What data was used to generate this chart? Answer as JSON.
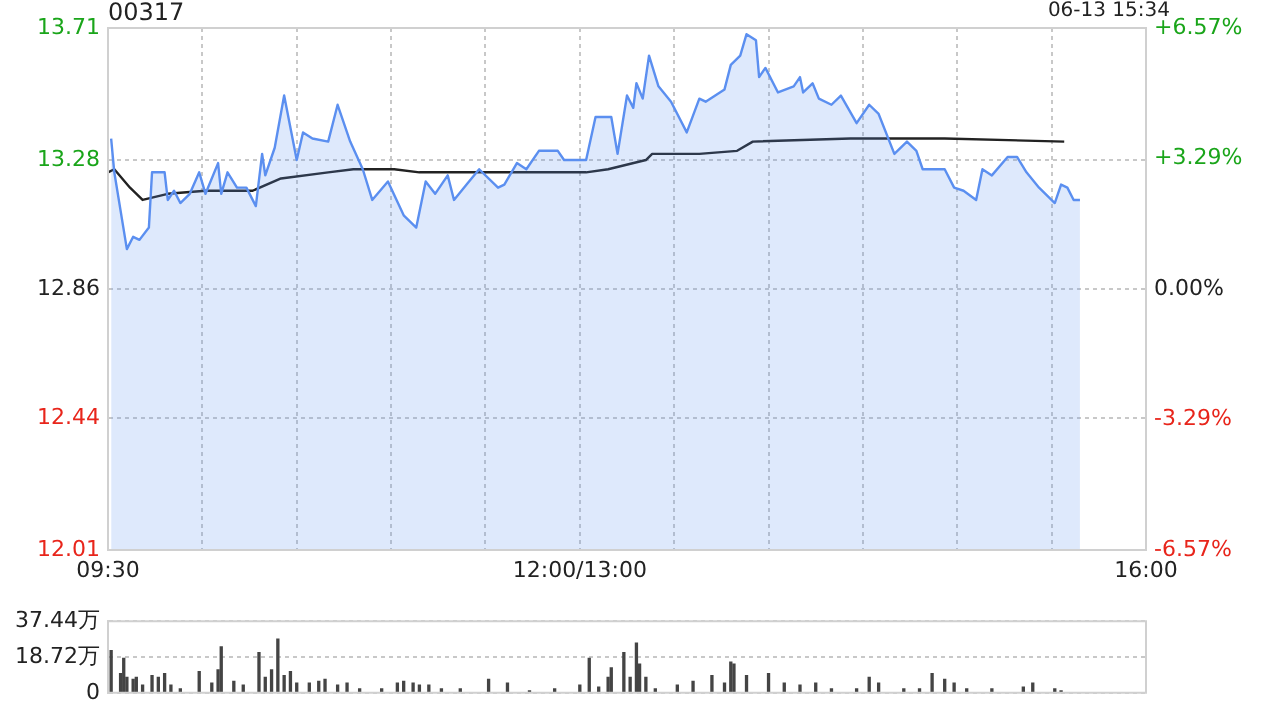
{
  "chart_data": [
    {
      "type": "line",
      "title": "00317",
      "annotations": [
        "06-13 15:34"
      ],
      "grid": true,
      "marker": "none",
      "categories": [
        "09:30",
        null,
        null,
        null,
        null,
        null,
        null,
        null,
        null,
        null,
        null,
        null,
        null,
        null,
        null,
        null,
        null,
        null,
        null,
        null,
        null,
        null,
        null,
        null,
        null,
        null,
        null,
        null,
        null,
        null,
        null,
        null,
        null,
        null,
        null,
        null,
        null,
        null,
        null,
        null,
        null,
        null,
        null,
        null,
        null,
        null,
        null,
        null,
        null,
        null,
        null,
        null,
        null,
        null,
        null,
        null,
        null,
        null,
        null,
        null,
        null,
        null,
        null,
        null,
        null,
        null,
        null,
        null,
        null,
        null,
        null,
        null,
        null,
        null,
        null,
        null,
        null,
        null,
        null,
        null,
        null,
        null,
        null,
        null,
        null,
        null,
        null,
        null,
        null,
        null,
        null,
        null,
        null,
        null,
        null,
        null,
        null,
        null,
        null,
        null,
        null,
        null,
        null,
        null,
        null,
        null,
        null,
        null,
        null,
        null,
        null,
        null,
        null,
        null,
        null,
        null,
        null,
        null,
        null,
        null,
        null,
        null,
        null,
        null,
        null,
        null,
        null,
        null,
        null,
        null,
        null,
        null,
        null,
        null,
        null,
        null,
        null,
        null,
        null,
        null,
        null,
        null,
        null,
        null,
        null,
        null,
        null,
        null,
        null,
        null,
        "12:00/13:00",
        null,
        null,
        null,
        null,
        null,
        null,
        null,
        null,
        null,
        null,
        null,
        null,
        null,
        null,
        null,
        null,
        null,
        null,
        null,
        null,
        null,
        null,
        null,
        null,
        null,
        null,
        null,
        null,
        null,
        null,
        null,
        null,
        null,
        null,
        null,
        null,
        null,
        null,
        null,
        null,
        null,
        null,
        null,
        null,
        null,
        null,
        null,
        null,
        null,
        null,
        null,
        null,
        null,
        null,
        null,
        null,
        null,
        null,
        null,
        null,
        null,
        null,
        null,
        null,
        null,
        null,
        null,
        null,
        null,
        null,
        null,
        null,
        null,
        null,
        null,
        null,
        null,
        null,
        null,
        null,
        null,
        null,
        null,
        null,
        null,
        null,
        null,
        null,
        null,
        null,
        null,
        null,
        null,
        null,
        null,
        null,
        null,
        null,
        null,
        null,
        null,
        null,
        null,
        null,
        null,
        null,
        null,
        null,
        null,
        null,
        null,
        null,
        null,
        null,
        null,
        null,
        null,
        null,
        null,
        null,
        null,
        null,
        null,
        null,
        null,
        null,
        null,
        null,
        null,
        null,
        null,
        null,
        null,
        null,
        null,
        null,
        null,
        null,
        null,
        null,
        null,
        null,
        null,
        null,
        null,
        null,
        null,
        null,
        null,
        null,
        null,
        null,
        null,
        null,
        null,
        null,
        null,
        null,
        null,
        null,
        null,
        null,
        null,
        null,
        null,
        null,
        null,
        null,
        null,
        null,
        null,
        null,
        null,
        null,
        null,
        null,
        null,
        null,
        null,
        "16:00"
      ],
      "ylim": [
        12.01,
        13.71
      ],
      "yticks": [
        12.01,
        12.44,
        12.86,
        13.28,
        13.71
      ],
      "y2lim": [
        -6.57,
        6.57
      ],
      "y2ticks": [
        {
          "value": -6.57,
          "label": "-6.57%"
        },
        {
          "value": -3.29,
          "label": "-3.29%"
        },
        {
          "value": 0,
          "label": "0.00%"
        },
        {
          "value": 3.29,
          "label": "+3.29%"
        },
        {
          "value": 6.57,
          "label": "+6.57%"
        }
      ],
      "series": [
        {
          "type": "area",
          "color": "#5b8ff0",
          "values": [
            null,
            13.35,
            13.24,
            null,
            null,
            null,
            12.99,
            null,
            13.03,
            null,
            13.02,
            null,
            null,
            13.06,
            13.24,
            null,
            null,
            null,
            13.24,
            13.15,
            null,
            13.18,
            null,
            13.14,
            null,
            null,
            13.17,
            null,
            null,
            13.24,
            null,
            13.17,
            null,
            null,
            null,
            13.27,
            13.17,
            null,
            13.24,
            null,
            null,
            13.19,
            null,
            null,
            13.19,
            null,
            null,
            13.13,
            null,
            13.3,
            13.23,
            null,
            null,
            13.32,
            null,
            null,
            13.49,
            null,
            null,
            null,
            13.28,
            null,
            13.37,
            null,
            null,
            13.35,
            null,
            null,
            null,
            null,
            13.34,
            null,
            null,
            13.46,
            null,
            null,
            null,
            13.34,
            null,
            null,
            null,
            13.25,
            null,
            null,
            13.15,
            null,
            null,
            null,
            null,
            13.21,
            null,
            null,
            null,
            null,
            13.1,
            null,
            null,
            null,
            13.06,
            null,
            null,
            13.21,
            null,
            null,
            13.17,
            null,
            null,
            null,
            13.23,
            null,
            13.15,
            null,
            null,
            null,
            13.2,
            null,
            null,
            null,
            13.25,
            null,
            null,
            null,
            null,
            null,
            13.19,
            null,
            13.2,
            null,
            null,
            null,
            13.27,
            null,
            null,
            13.25,
            null,
            null,
            null,
            13.31,
            null,
            null,
            null,
            null,
            null,
            13.31,
            null,
            13.28,
            null,
            null,
            null,
            null,
            null,
            null,
            13.28,
            null,
            null,
            13.42,
            null,
            null,
            null,
            null,
            13.42,
            null,
            13.3,
            null,
            null,
            13.49,
            null,
            13.45,
            13.53,
            null,
            13.48,
            null,
            13.62,
            null,
            null,
            13.52,
            null,
            null,
            null,
            13.47,
            null,
            null,
            null,
            null,
            13.37,
            null,
            null,
            null,
            13.48,
            null,
            13.47,
            null,
            null,
            null,
            null,
            null,
            13.51,
            null,
            13.59,
            null,
            null,
            13.62,
            null,
            13.69,
            null,
            null,
            13.67,
            13.55,
            null,
            13.58,
            null,
            null,
            null,
            13.5,
            null,
            null,
            null,
            null,
            13.52,
            null,
            13.55,
            13.5,
            null,
            null,
            13.53,
            null,
            13.48,
            null,
            null,
            null,
            13.46,
            null,
            null,
            13.49,
            null,
            null,
            null,
            null,
            13.4,
            null,
            null,
            null,
            13.46,
            null,
            null,
            13.43,
            null,
            null,
            null,
            null,
            13.3,
            null,
            null,
            null,
            13.34,
            null,
            null,
            13.31,
            null,
            13.25,
            null,
            null,
            null,
            null,
            null,
            null,
            13.25,
            null,
            null,
            13.19,
            null,
            null,
            13.18,
            null,
            null,
            null,
            13.15,
            null,
            13.25,
            null,
            null,
            13.23,
            null,
            null,
            null,
            null,
            13.29,
            null,
            null,
            13.29,
            null,
            null,
            13.24,
            null,
            null,
            null,
            13.19,
            null,
            null,
            null,
            null,
            13.14,
            null,
            13.2,
            null,
            13.19,
            null,
            13.15,
            null,
            13.15,
            null,
            null,
            null,
            null,
            null,
            null,
            null,
            null,
            null,
            null,
            null,
            null,
            null,
            null,
            null,
            null,
            null,
            null,
            null,
            null,
            null
          ]
        },
        {
          "type": "line",
          "color": "#222222",
          "values": [
            13.24,
            null,
            13.25,
            null,
            null,
            null,
            null,
            13.19,
            null,
            null,
            null,
            13.15,
            null,
            null,
            null,
            null,
            null,
            null,
            null,
            13.17,
            null,
            null,
            null,
            null,
            null,
            null,
            null,
            null,
            null,
            null,
            null,
            13.18,
            null,
            null,
            null,
            null,
            null,
            null,
            null,
            null,
            null,
            null,
            null,
            null,
            null,
            null,
            13.18,
            null,
            null,
            null,
            null,
            null,
            null,
            null,
            null,
            13.22,
            null,
            null,
            null,
            null,
            null,
            null,
            null,
            null,
            null,
            null,
            null,
            null,
            null,
            null,
            13.24,
            null,
            null,
            null,
            null,
            null,
            null,
            null,
            13.25,
            null,
            null,
            null,
            null,
            null,
            null,
            null,
            null,
            null,
            null,
            null,
            null,
            13.25,
            null,
            null,
            null,
            null,
            null,
            null,
            null,
            13.24,
            null,
            null,
            null,
            null,
            null,
            null,
            null,
            null,
            null,
            null,
            null,
            null,
            null,
            null,
            null,
            null,
            null,
            null,
            null,
            null,
            null,
            null,
            null,
            null,
            null,
            13.24,
            null,
            null,
            null,
            null,
            null,
            null,
            null,
            null,
            null,
            null,
            null,
            null,
            null,
            null,
            null,
            null,
            null,
            null,
            null,
            null,
            null,
            null,
            null,
            null,
            null,
            null,
            13.24,
            null,
            null,
            null,
            null,
            null,
            null,
            13.25,
            null,
            null,
            null,
            null,
            null,
            null,
            null,
            null,
            null,
            null,
            null,
            13.28,
            null,
            13.3,
            null,
            null,
            null,
            null,
            null,
            null,
            null,
            null,
            null,
            null,
            null,
            null,
            null,
            null,
            13.3,
            null,
            null,
            null,
            null,
            null,
            null,
            null,
            null,
            null,
            null,
            null,
            13.31,
            null,
            null,
            null,
            null,
            13.34,
            null,
            null,
            null,
            null,
            null,
            null,
            null,
            null,
            null,
            null,
            null,
            null,
            null,
            null,
            null,
            null,
            null,
            null,
            null,
            null,
            null,
            null,
            null,
            null,
            null,
            null,
            null,
            null,
            null,
            null,
            13.35,
            null,
            null,
            null,
            null,
            null,
            null,
            null,
            null,
            null,
            null,
            null,
            null,
            null,
            null,
            null,
            null,
            null,
            null,
            null,
            null,
            null,
            null,
            null,
            null,
            null,
            null,
            null,
            null,
            null,
            13.35,
            null,
            null,
            null,
            null,
            null,
            null,
            null,
            null,
            null,
            null,
            null,
            null,
            null,
            null,
            null,
            null,
            null,
            null,
            null,
            null,
            null,
            null,
            null,
            null,
            null,
            null,
            null,
            null,
            null,
            null,
            null,
            null,
            null,
            null,
            null,
            null,
            null,
            13.34,
            null,
            null,
            null,
            null,
            null,
            null,
            null,
            null,
            null,
            null,
            null,
            null,
            null,
            null,
            null,
            null,
            null,
            null,
            null,
            null,
            null,
            null,
            null,
            null,
            null,
            null
          ]
        }
      ]
    },
    {
      "type": "bar",
      "grid": "y",
      "tick_labels": "y",
      "ylim": [
        0,
        37.44
      ],
      "yticks": [
        0,
        {
          "value": 18.72,
          "label": "18.72万"
        },
        {
          "value": 37.44,
          "label": "37.44万"
        }
      ],
      "series": [
        {
          "color": "#444444",
          "values": [
            null,
            22,
            null,
            null,
            10,
            18,
            8,
            null,
            7,
            8,
            null,
            4,
            null,
            null,
            9,
            null,
            8,
            null,
            10,
            null,
            4,
            null,
            null,
            2,
            null,
            null,
            null,
            null,
            null,
            11,
            null,
            null,
            null,
            5,
            null,
            12,
            24,
            null,
            null,
            null,
            6,
            null,
            null,
            4,
            null,
            null,
            null,
            null,
            21,
            null,
            8,
            null,
            12,
            null,
            28,
            null,
            9,
            null,
            11,
            null,
            5,
            null,
            null,
            null,
            5,
            null,
            null,
            6,
            null,
            7,
            null,
            null,
            null,
            4,
            null,
            null,
            5,
            null,
            null,
            null,
            2,
            null,
            null,
            null,
            null,
            null,
            null,
            2,
            null,
            null,
            null,
            null,
            5,
            null,
            6,
            null,
            null,
            5,
            null,
            4,
            null,
            null,
            4,
            null,
            null,
            null,
            2,
            null,
            null,
            null,
            null,
            null,
            2,
            null,
            null,
            null,
            null,
            null,
            null,
            null,
            null,
            7,
            null,
            null,
            null,
            null,
            null,
            5,
            null,
            null,
            null,
            null,
            null,
            null,
            1,
            null,
            null,
            null,
            null,
            null,
            null,
            null,
            2,
            null,
            null,
            null,
            null,
            null,
            null,
            null,
            4,
            null,
            null,
            18,
            null,
            null,
            3,
            null,
            null,
            8,
            13,
            null,
            null,
            null,
            21,
            null,
            8,
            null,
            26,
            15,
            null,
            8,
            null,
            null,
            2,
            null,
            null,
            null,
            null,
            null,
            null,
            4,
            null,
            null,
            null,
            null,
            6,
            null,
            null,
            null,
            null,
            null,
            9,
            null,
            null,
            null,
            5,
            null,
            16,
            15,
            null,
            null,
            null,
            9,
            null,
            null,
            null,
            null,
            null,
            null,
            10,
            null,
            null,
            null,
            null,
            5,
            null,
            null,
            null,
            null,
            4,
            null,
            null,
            null,
            null,
            5,
            null,
            null,
            null,
            null,
            2,
            null,
            null,
            null,
            null,
            null,
            null,
            null,
            2,
            null,
            null,
            null,
            8,
            null,
            null,
            5,
            null,
            null,
            null,
            null,
            null,
            null,
            null,
            2,
            null,
            null,
            null,
            null,
            2,
            null,
            null,
            null,
            10,
            null,
            null,
            null,
            7,
            null,
            null,
            5,
            null,
            null,
            null,
            2,
            null,
            null,
            null,
            null,
            null,
            null,
            null,
            2,
            null,
            null,
            null,
            null,
            null,
            null,
            null,
            null,
            null,
            3,
            null,
            null,
            5,
            null,
            null,
            null,
            null,
            null,
            null,
            2,
            null,
            1,
            null,
            null,
            null,
            null,
            null,
            null,
            null,
            null,
            null,
            null,
            null,
            null,
            null,
            null,
            null,
            null,
            null,
            null,
            null,
            null,
            null,
            null,
            null,
            null,
            null,
            null,
            null
          ]
        }
      ]
    }
  ]
}
